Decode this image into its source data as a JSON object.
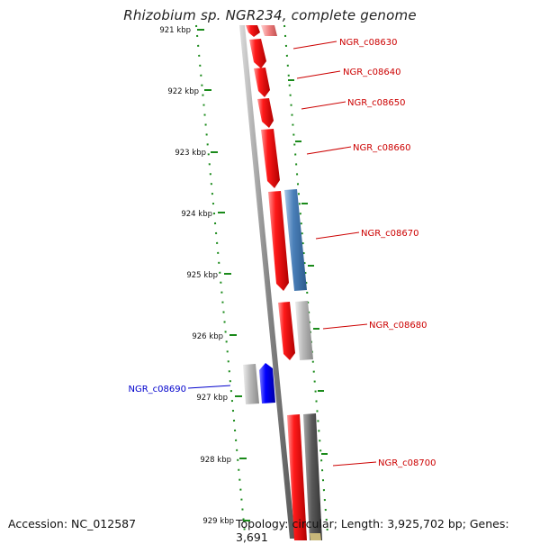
{
  "title": "Rhizobium sp. NGR234, complete genome",
  "footer": {
    "accession": "Accession: NC_012587",
    "topology": "Topology: circular; Length: 3,925,702 bp; Genes: 3,691"
  },
  "colors": {
    "forward_gene": "#ff0000",
    "reverse_gene": "#4a7fb8",
    "grey_gene": "#b8b8b8",
    "dark_gene": "#5a5a5a",
    "blue_gene": "#0000ff",
    "tick": "#1a8a1a",
    "label_forward": "#cc0000",
    "label_reverse": "#0000cc"
  },
  "ticks": [
    "921 kbp",
    "922 kbp",
    "923 kbp",
    "924 kbp",
    "925 kbp",
    "926 kbp",
    "927 kbp",
    "928 kbp",
    "929 kbp"
  ],
  "gene_labels": [
    {
      "name": "NGR_c08630",
      "side": "right"
    },
    {
      "name": "NGR_c08640",
      "side": "right"
    },
    {
      "name": "NGR_c08650",
      "side": "right"
    },
    {
      "name": "NGR_c08660",
      "side": "right"
    },
    {
      "name": "NGR_c08670",
      "side": "right"
    },
    {
      "name": "NGR_c08680",
      "side": "right"
    },
    {
      "name": "NGR_c08690",
      "side": "left"
    },
    {
      "name": "NGR_c08700",
      "side": "right"
    }
  ]
}
